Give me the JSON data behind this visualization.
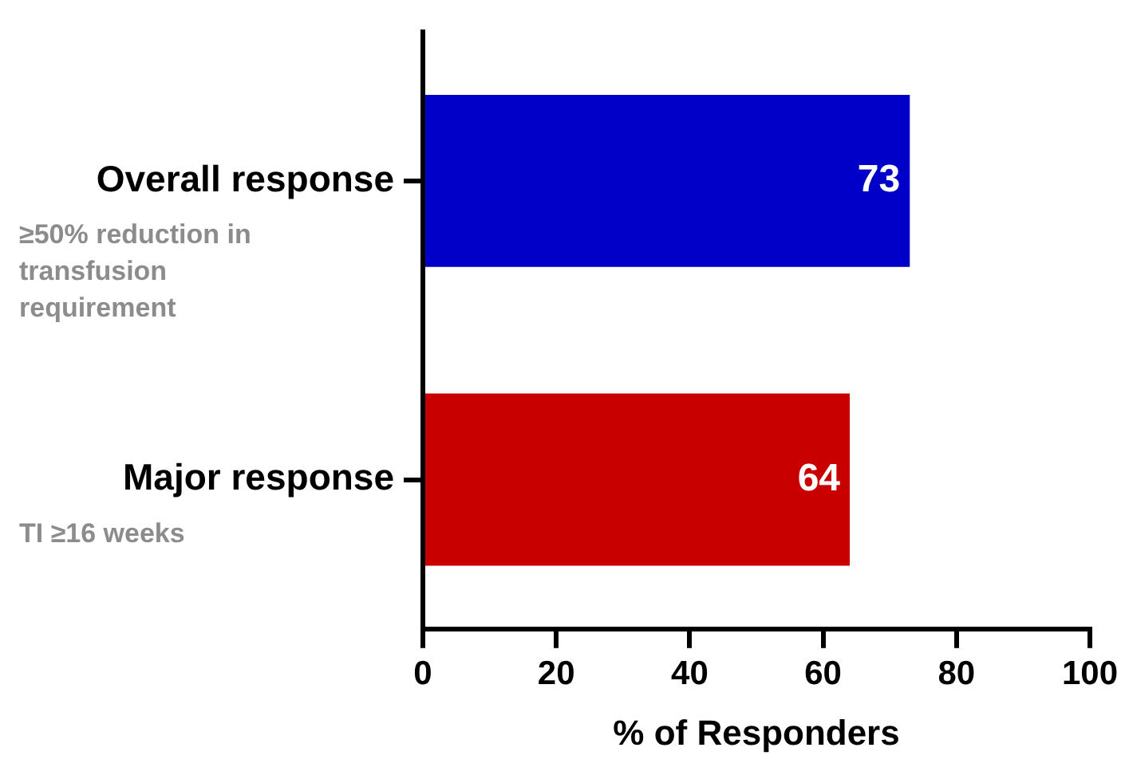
{
  "chart_data": {
    "type": "bar",
    "orientation": "horizontal",
    "categories": [
      "Overall response",
      "Major response"
    ],
    "series": [
      {
        "colors": [
          "#0000c8",
          "#c80000"
        ],
        "values": [
          73,
          64
        ]
      }
    ],
    "xlabel": "% of Responders",
    "xlim": [
      0,
      100
    ],
    "xticks": [
      0,
      20,
      40,
      60,
      80,
      100
    ],
    "grid": false,
    "legend": false,
    "data_labels": true,
    "annotations": [
      "≥50% reduction in transfusion requirement",
      "TI ≥16 weeks"
    ]
  }
}
